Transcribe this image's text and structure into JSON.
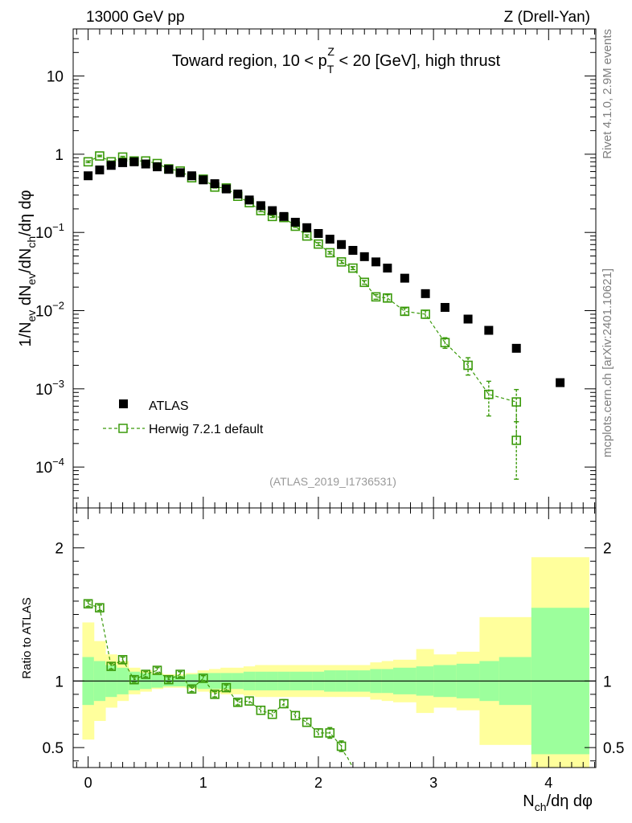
{
  "header": {
    "energy": "13000 GeV pp",
    "process": "Z (Drell-Yan)"
  },
  "side_text": {
    "rivet": "Rivet 4.1.0,  2.9M events",
    "source": "mcplots.cern.ch [arXiv:2401.10621]"
  },
  "colors": {
    "data": "#000000",
    "mc": "#3a9a0a",
    "band_inner": "#9cff9c",
    "band_outer": "#ffff9c"
  },
  "chart_data": [
    {
      "type": "scatter",
      "panel": "main",
      "title": "Toward region, 10 < p_T^Z < 20 [GeV], high thrust",
      "title_parts": {
        "prefix": "Toward region, 10 < p",
        "sub": "T",
        "sup": "Z",
        "suffix": " < 20 [GeV], high thrust"
      },
      "watermark": "(ATLAS_2019_I1736531)",
      "ylabel": "1/N_ev dN_ev/dN_ch/dη dφ",
      "yscale": "log",
      "ylim": [
        3e-05,
        40
      ],
      "xlim": [
        -0.13,
        4.41
      ],
      "yticks": [
        {
          "value": 0.0001,
          "base": "10",
          "exp": "−4"
        },
        {
          "value": 0.001,
          "base": "10",
          "exp": "−3"
        },
        {
          "value": 0.01,
          "base": "10",
          "exp": "−2"
        },
        {
          "value": 0.1,
          "base": "10",
          "exp": "−1"
        },
        {
          "value": 1,
          "base": "1",
          "exp": ""
        },
        {
          "value": 10,
          "base": "10",
          "exp": ""
        }
      ],
      "legend": [
        {
          "name": "ATLAS",
          "marker": "filled-square"
        },
        {
          "name": "Herwig 7.2.1 default",
          "marker": "open-square-dashed"
        }
      ],
      "series": [
        {
          "name": "ATLAS",
          "x": [
            0.0,
            0.1,
            0.2,
            0.3,
            0.4,
            0.5,
            0.6,
            0.7,
            0.8,
            0.9,
            1.0,
            1.1,
            1.2,
            1.3,
            1.4,
            1.5,
            1.6,
            1.7,
            1.8,
            1.9,
            2.0,
            2.1,
            2.2,
            2.3,
            2.4,
            2.5,
            2.6,
            2.75,
            2.93,
            3.1,
            3.3,
            3.48,
            3.72,
            4.1
          ],
          "y": [
            0.53,
            0.63,
            0.72,
            0.78,
            0.8,
            0.75,
            0.69,
            0.64,
            0.58,
            0.53,
            0.47,
            0.42,
            0.36,
            0.31,
            0.26,
            0.22,
            0.19,
            0.16,
            0.135,
            0.115,
            0.097,
            0.082,
            0.07,
            0.059,
            0.049,
            0.042,
            0.035,
            0.026,
            0.0165,
            0.011,
            0.0078,
            0.0056,
            0.0033,
            0.0012
          ]
        },
        {
          "name": "Herwig 7.2.1 default",
          "x": [
            0.0,
            0.1,
            0.2,
            0.3,
            0.4,
            0.5,
            0.6,
            0.7,
            0.8,
            0.9,
            1.0,
            1.1,
            1.2,
            1.3,
            1.4,
            1.5,
            1.6,
            1.7,
            1.8,
            1.9,
            2.0,
            2.1,
            2.2,
            2.3,
            2.4,
            2.5,
            2.6,
            2.75,
            2.93,
            3.1,
            3.3,
            3.48,
            3.72
          ],
          "y": [
            0.8,
            0.95,
            0.8,
            0.92,
            0.82,
            0.82,
            0.76,
            0.65,
            0.61,
            0.5,
            0.48,
            0.38,
            0.37,
            0.29,
            0.24,
            0.19,
            0.16,
            0.155,
            0.12,
            0.09,
            0.071,
            0.055,
            0.042,
            0.035,
            0.023,
            0.015,
            0.0145,
            0.0098,
            0.009,
            0.0039,
            0.002,
            0.00085,
            0.00068
          ],
          "yerr": [
            0.02,
            0.02,
            0.02,
            0.02,
            0.02,
            0.02,
            0.02,
            0.02,
            0.015,
            0.015,
            0.01,
            0.01,
            0.01,
            0.01,
            0.008,
            0.006,
            0.005,
            0.005,
            0.004,
            0.003,
            0.003,
            0.002,
            0.002,
            0.0015,
            0.0012,
            0.001,
            0.0015,
            0.001,
            0.001,
            0.0006,
            0.0005,
            0.0004,
            0.0003
          ]
        }
      ],
      "extra_point": {
        "x": 3.72,
        "y": 0.00022,
        "ylow": 7e-05,
        "yhigh": 0.00038
      }
    },
    {
      "type": "scatter",
      "panel": "ratio",
      "ylabel": "Ratio to ATLAS",
      "xlabel": "N_ch/dη dφ",
      "xlabel_parts": {
        "prefix": "N",
        "sub": "ch",
        "suffix": "/dη dφ"
      },
      "ylim": [
        0.35,
        2.3
      ],
      "xlim": [
        -0.13,
        4.41
      ],
      "xticks": [
        0,
        1,
        2,
        3,
        4
      ],
      "yticks": [
        0.5,
        1,
        2
      ],
      "bands": {
        "edges": [
          -0.05,
          0.05,
          0.15,
          0.25,
          0.35,
          0.45,
          0.55,
          0.65,
          0.75,
          0.85,
          0.95,
          1.05,
          1.15,
          1.25,
          1.35,
          1.45,
          1.55,
          1.65,
          1.75,
          1.85,
          1.95,
          2.05,
          2.15,
          2.25,
          2.35,
          2.45,
          2.55,
          2.65,
          2.85,
          3.0,
          3.2,
          3.4,
          3.57,
          3.85,
          4.35
        ],
        "inner": [
          0.18,
          0.15,
          0.12,
          0.1,
          0.07,
          0.06,
          0.05,
          0.04,
          0.04,
          0.05,
          0.06,
          0.06,
          0.06,
          0.06,
          0.07,
          0.07,
          0.07,
          0.07,
          0.07,
          0.07,
          0.07,
          0.08,
          0.08,
          0.08,
          0.08,
          0.09,
          0.09,
          0.1,
          0.11,
          0.12,
          0.13,
          0.15,
          0.18,
          0.55
        ],
        "outer": [
          0.44,
          0.3,
          0.2,
          0.15,
          0.1,
          0.08,
          0.06,
          0.05,
          0.05,
          0.06,
          0.08,
          0.09,
          0.1,
          0.1,
          0.11,
          0.12,
          0.12,
          0.12,
          0.12,
          0.12,
          0.12,
          0.12,
          0.12,
          0.12,
          0.12,
          0.14,
          0.15,
          0.16,
          0.24,
          0.2,
          0.22,
          0.48,
          0.48,
          0.93
        ]
      },
      "series": [
        {
          "name": "Herwig 7.2.1 default / ATLAS",
          "x": [
            0.0,
            0.1,
            0.2,
            0.3,
            0.4,
            0.5,
            0.6,
            0.7,
            0.8,
            0.9,
            1.0,
            1.1,
            1.2,
            1.3,
            1.4,
            1.5,
            1.6,
            1.7,
            1.8,
            1.9,
            2.0,
            2.1,
            2.2
          ],
          "y": [
            1.58,
            1.55,
            1.11,
            1.16,
            1.01,
            1.05,
            1.08,
            1.01,
            1.05,
            0.94,
            1.02,
            0.9,
            0.95,
            0.84,
            0.85,
            0.78,
            0.75,
            0.83,
            0.74,
            0.69,
            0.61,
            0.61,
            0.51
          ],
          "yerr": [
            0.02,
            0.02,
            0.02,
            0.02,
            0.02,
            0.02,
            0.02,
            0.02,
            0.02,
            0.02,
            0.02,
            0.02,
            0.02,
            0.02,
            0.03,
            0.03,
            0.03,
            0.03,
            0.03,
            0.03,
            0.03,
            0.04,
            0.04
          ]
        }
      ],
      "tail": {
        "x": [
          2.2,
          2.25,
          2.3
        ],
        "y": [
          0.49,
          0.43,
          0.35
        ]
      }
    }
  ]
}
